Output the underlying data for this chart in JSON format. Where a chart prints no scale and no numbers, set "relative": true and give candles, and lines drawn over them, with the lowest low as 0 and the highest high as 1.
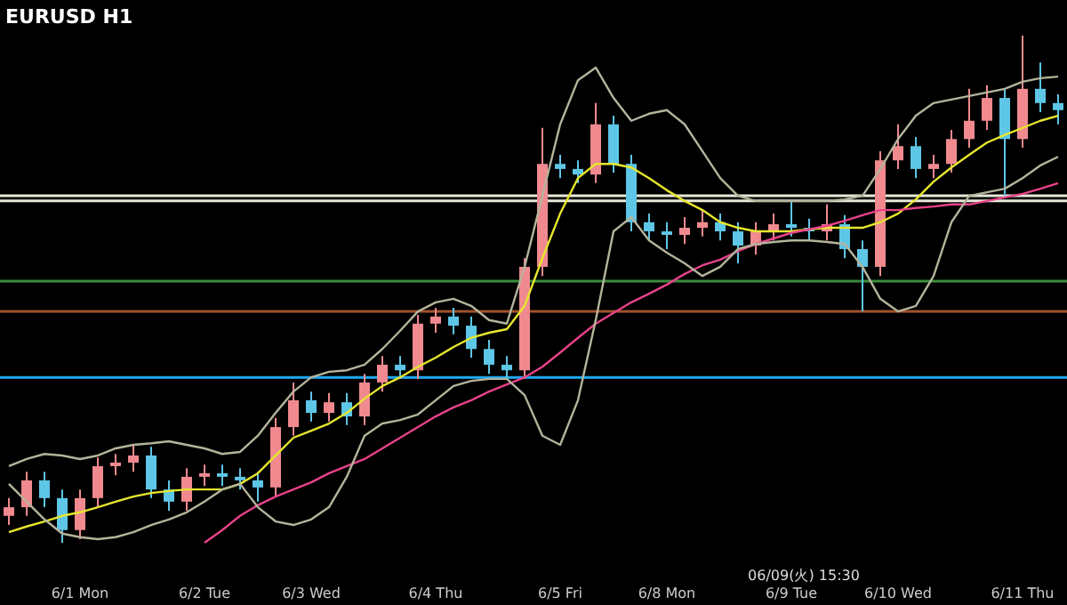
{
  "chart_data": {
    "type": "candlestick",
    "title": "EURUSD H1",
    "relative": true,
    "categories": [
      null,
      null,
      null,
      null,
      "6/1 Mon",
      null,
      null,
      null,
      null,
      null,
      null,
      "6/2 Tue",
      null,
      null,
      null,
      null,
      null,
      "6/3 Wed",
      null,
      null,
      null,
      null,
      null,
      null,
      "6/4 Thu",
      null,
      null,
      null,
      null,
      null,
      null,
      "6/5 Fri",
      null,
      null,
      null,
      null,
      null,
      "6/8 Mon",
      null,
      null,
      null,
      null,
      null,
      null,
      "6/9 Tue",
      null,
      null,
      null,
      null,
      null,
      "6/10 Wed",
      null,
      null,
      null,
      null,
      null,
      null,
      "6/11 Thu",
      null,
      null
    ],
    "ohlc": [
      [
        0.053,
        0.088,
        0.035,
        0.07
      ],
      [
        0.07,
        0.14,
        0.053,
        0.123
      ],
      [
        0.123,
        0.14,
        0.07,
        0.088
      ],
      [
        0.088,
        0.105,
        0,
        0.025
      ],
      [
        0.025,
        0.105,
        0.007,
        0.088
      ],
      [
        0.088,
        0.168,
        0.07,
        0.151
      ],
      [
        0.151,
        0.175,
        0.133,
        0.158
      ],
      [
        0.158,
        0.193,
        0.14,
        0.172
      ],
      [
        0.172,
        0.189,
        0.088,
        0.105
      ],
      [
        0.105,
        0.123,
        0.063,
        0.081
      ],
      [
        0.081,
        0.147,
        0.063,
        0.13
      ],
      [
        0.13,
        0.154,
        0.112,
        0.137
      ],
      [
        0.137,
        0.154,
        0.112,
        0.13
      ],
      [
        0.13,
        0.147,
        0.105,
        0.123
      ],
      [
        0.123,
        0.14,
        0.081,
        0.109
      ],
      [
        0.109,
        0.246,
        0.091,
        0.228
      ],
      [
        0.228,
        0.316,
        0.211,
        0.281
      ],
      [
        0.281,
        0.298,
        0.239,
        0.256
      ],
      [
        0.256,
        0.295,
        0.239,
        0.277
      ],
      [
        0.277,
        0.295,
        0.232,
        0.249
      ],
      [
        0.249,
        0.333,
        0.232,
        0.316
      ],
      [
        0.316,
        0.368,
        0.298,
        0.351
      ],
      [
        0.351,
        0.368,
        0.323,
        0.34
      ],
      [
        0.34,
        0.449,
        0.323,
        0.432
      ],
      [
        0.432,
        0.463,
        0.414,
        0.446
      ],
      [
        0.446,
        0.463,
        0.411,
        0.428
      ],
      [
        0.428,
        0.446,
        0.365,
        0.382
      ],
      [
        0.382,
        0.4,
        0.333,
        0.351
      ],
      [
        0.351,
        0.368,
        0.323,
        0.34
      ],
      [
        0.34,
        0.561,
        0.323,
        0.544
      ],
      [
        0.544,
        0.818,
        0.526,
        0.747
      ],
      [
        0.747,
        0.765,
        0.719,
        0.737
      ],
      [
        0.737,
        0.754,
        0.709,
        0.726
      ],
      [
        0.726,
        0.867,
        0.709,
        0.825
      ],
      [
        0.825,
        0.842,
        0.73,
        0.747
      ],
      [
        0.747,
        0.765,
        0.614,
        0.632
      ],
      [
        0.632,
        0.649,
        0.596,
        0.614
      ],
      [
        0.614,
        0.632,
        0.579,
        0.607
      ],
      [
        0.607,
        0.642,
        0.589,
        0.621
      ],
      [
        0.621,
        0.656,
        0.604,
        0.632
      ],
      [
        0.632,
        0.649,
        0.596,
        0.614
      ],
      [
        0.614,
        0.632,
        0.551,
        0.586
      ],
      [
        0.586,
        0.632,
        0.568,
        0.614
      ],
      [
        0.614,
        0.649,
        0.596,
        0.628
      ],
      [
        0.628,
        0.677,
        0.604,
        0.621
      ],
      [
        0.621,
        0.639,
        0.596,
        0.614
      ],
      [
        0.614,
        0.667,
        0.596,
        0.628
      ],
      [
        0.628,
        0.646,
        0.561,
        0.579
      ],
      [
        0.579,
        0.596,
        0.456,
        0.544
      ],
      [
        0.544,
        0.772,
        0.526,
        0.754
      ],
      [
        0.754,
        0.825,
        0.737,
        0.782
      ],
      [
        0.782,
        0.8,
        0.719,
        0.737
      ],
      [
        0.737,
        0.765,
        0.719,
        0.747
      ],
      [
        0.747,
        0.814,
        0.73,
        0.796
      ],
      [
        0.796,
        0.895,
        0.779,
        0.832
      ],
      [
        0.832,
        0.902,
        0.814,
        0.877
      ],
      [
        0.877,
        0.895,
        0.684,
        0.796
      ],
      [
        0.796,
        1,
        0.779,
        0.895
      ],
      [
        0.895,
        0.947,
        0.849,
        0.867
      ],
      [
        0.867,
        0.884,
        0.825,
        0.853
      ]
    ],
    "colors": [
      "#f08a8f",
      "#f08a8f",
      "#5ec6e6",
      "#5ec6e6",
      "#f08a8f",
      "#f08a8f",
      "#f08a8f",
      "#f08a8f",
      "#5ec6e6",
      "#5ec6e6",
      "#f08a8f",
      "#f08a8f",
      "#5ec6e6",
      "#5ec6e6",
      "#5ec6e6",
      "#f08a8f",
      "#f08a8f",
      "#5ec6e6",
      "#f08a8f",
      "#5ec6e6",
      "#f08a8f",
      "#f08a8f",
      "#5ec6e6",
      "#f08a8f",
      "#f08a8f",
      "#5ec6e6",
      "#5ec6e6",
      "#5ec6e6",
      "#5ec6e6",
      "#f08a8f",
      "#f08a8f",
      "#5ec6e6",
      "#5ec6e6",
      "#f08a8f",
      "#5ec6e6",
      "#5ec6e6",
      "#5ec6e6",
      "#5ec6e6",
      "#f08a8f",
      "#f08a8f",
      "#5ec6e6",
      "#5ec6e6",
      "#f08a8f",
      "#f08a8f",
      "#5ec6e6",
      "#5ec6e6",
      "#f08a8f",
      "#5ec6e6",
      "#5ec6e6",
      "#f08a8f",
      "#f08a8f",
      "#5ec6e6",
      "#f08a8f",
      "#f08a8f",
      "#f08a8f",
      "#f08a8f",
      "#5ec6e6",
      "#f08a8f",
      "#5ec6e6",
      "#5ec6e6"
    ],
    "series": [
      {
        "type": "line",
        "color": "#e6e62e",
        "values": [
          0.021,
          0.032,
          0.042,
          0.053,
          0.06,
          0.07,
          0.081,
          0.091,
          0.098,
          0.102,
          0.105,
          0.105,
          0.105,
          0.116,
          0.137,
          0.172,
          0.207,
          0.221,
          0.235,
          0.256,
          0.284,
          0.309,
          0.326,
          0.347,
          0.365,
          0.386,
          0.404,
          0.414,
          0.421,
          0.467,
          0.561,
          0.649,
          0.719,
          0.747,
          0.747,
          0.74,
          0.719,
          0.695,
          0.674,
          0.656,
          0.632,
          0.621,
          0.614,
          0.614,
          0.614,
          0.618,
          0.621,
          0.621,
          0.621,
          0.632,
          0.649,
          0.677,
          0.712,
          0.74,
          0.765,
          0.789,
          0.804,
          0.818,
          0.832,
          0.842
        ]
      },
      {
        "type": "line",
        "color": "#e8428a",
        "values": [
          null,
          null,
          null,
          null,
          null,
          null,
          null,
          null,
          null,
          null,
          null,
          0,
          0.025,
          0.053,
          0.074,
          0.091,
          0.105,
          0.119,
          0.137,
          0.151,
          0.165,
          0.186,
          0.207,
          0.228,
          0.249,
          0.267,
          0.281,
          0.298,
          0.312,
          0.326,
          0.347,
          0.375,
          0.404,
          0.432,
          0.453,
          0.474,
          0.491,
          0.509,
          0.53,
          0.547,
          0.558,
          0.575,
          0.589,
          0.6,
          0.611,
          0.618,
          0.625,
          0.635,
          0.646,
          0.656,
          0.656,
          0.66,
          0.663,
          0.667,
          0.667,
          0.674,
          0.681,
          0.688,
          0.698,
          0.709
        ]
      },
      {
        "type": "line",
        "color": "#b4b49c",
        "values": [
          0.151,
          0.165,
          0.175,
          0.172,
          0.165,
          0.172,
          0.186,
          0.193,
          0.196,
          0.2,
          0.193,
          0.186,
          0.175,
          0.179,
          0.211,
          0.256,
          0.298,
          0.326,
          0.337,
          0.34,
          0.351,
          0.382,
          0.418,
          0.456,
          0.474,
          0.481,
          0.467,
          0.439,
          0.432,
          0.544,
          0.684,
          0.825,
          0.912,
          0.937,
          0.877,
          0.832,
          0.846,
          0.853,
          0.825,
          0.772,
          0.719,
          0.684,
          0.674,
          0.674,
          0.674,
          0.674,
          0.674,
          0.677,
          0.684,
          0.737,
          0.796,
          0.842,
          0.867,
          0.874,
          0.881,
          0.888,
          0.895,
          0.909,
          0.916,
          0.919
        ]
      },
      {
        "type": "line",
        "color": "#b4b49c",
        "values": [
          0.116,
          0.081,
          0.046,
          0.018,
          0.011,
          0.007,
          0.011,
          0.021,
          0.035,
          0.046,
          0.06,
          0.081,
          0.105,
          0.116,
          0.07,
          0.042,
          0.035,
          0.046,
          0.07,
          0.13,
          0.211,
          0.235,
          0.242,
          0.253,
          0.281,
          0.309,
          0.319,
          0.323,
          0.323,
          0.291,
          0.211,
          0.193,
          0.281,
          0.439,
          0.614,
          0.642,
          0.596,
          0.572,
          0.551,
          0.526,
          0.544,
          0.579,
          0.589,
          0.593,
          0.596,
          0.596,
          0.593,
          0.589,
          0.544,
          0.481,
          0.456,
          0.467,
          0.526,
          0.632,
          0.684,
          0.691,
          0.698,
          0.719,
          0.744,
          0.761
        ]
      }
    ],
    "ref_lines": [
      {
        "axis": "y",
        "value": 0.684,
        "color": "#e8e8d8"
      },
      {
        "axis": "y",
        "value": 0.674,
        "color": "#e8e8d8"
      },
      {
        "axis": "y",
        "value": 0.516,
        "color": "#3c8c3c"
      },
      {
        "axis": "y",
        "value": 0.456,
        "color": "#a0522d"
      },
      {
        "axis": "y",
        "value": 0.326,
        "color": "#1eaaf0"
      }
    ],
    "annotations": [
      "06/09(火) 15:30"
    ]
  }
}
